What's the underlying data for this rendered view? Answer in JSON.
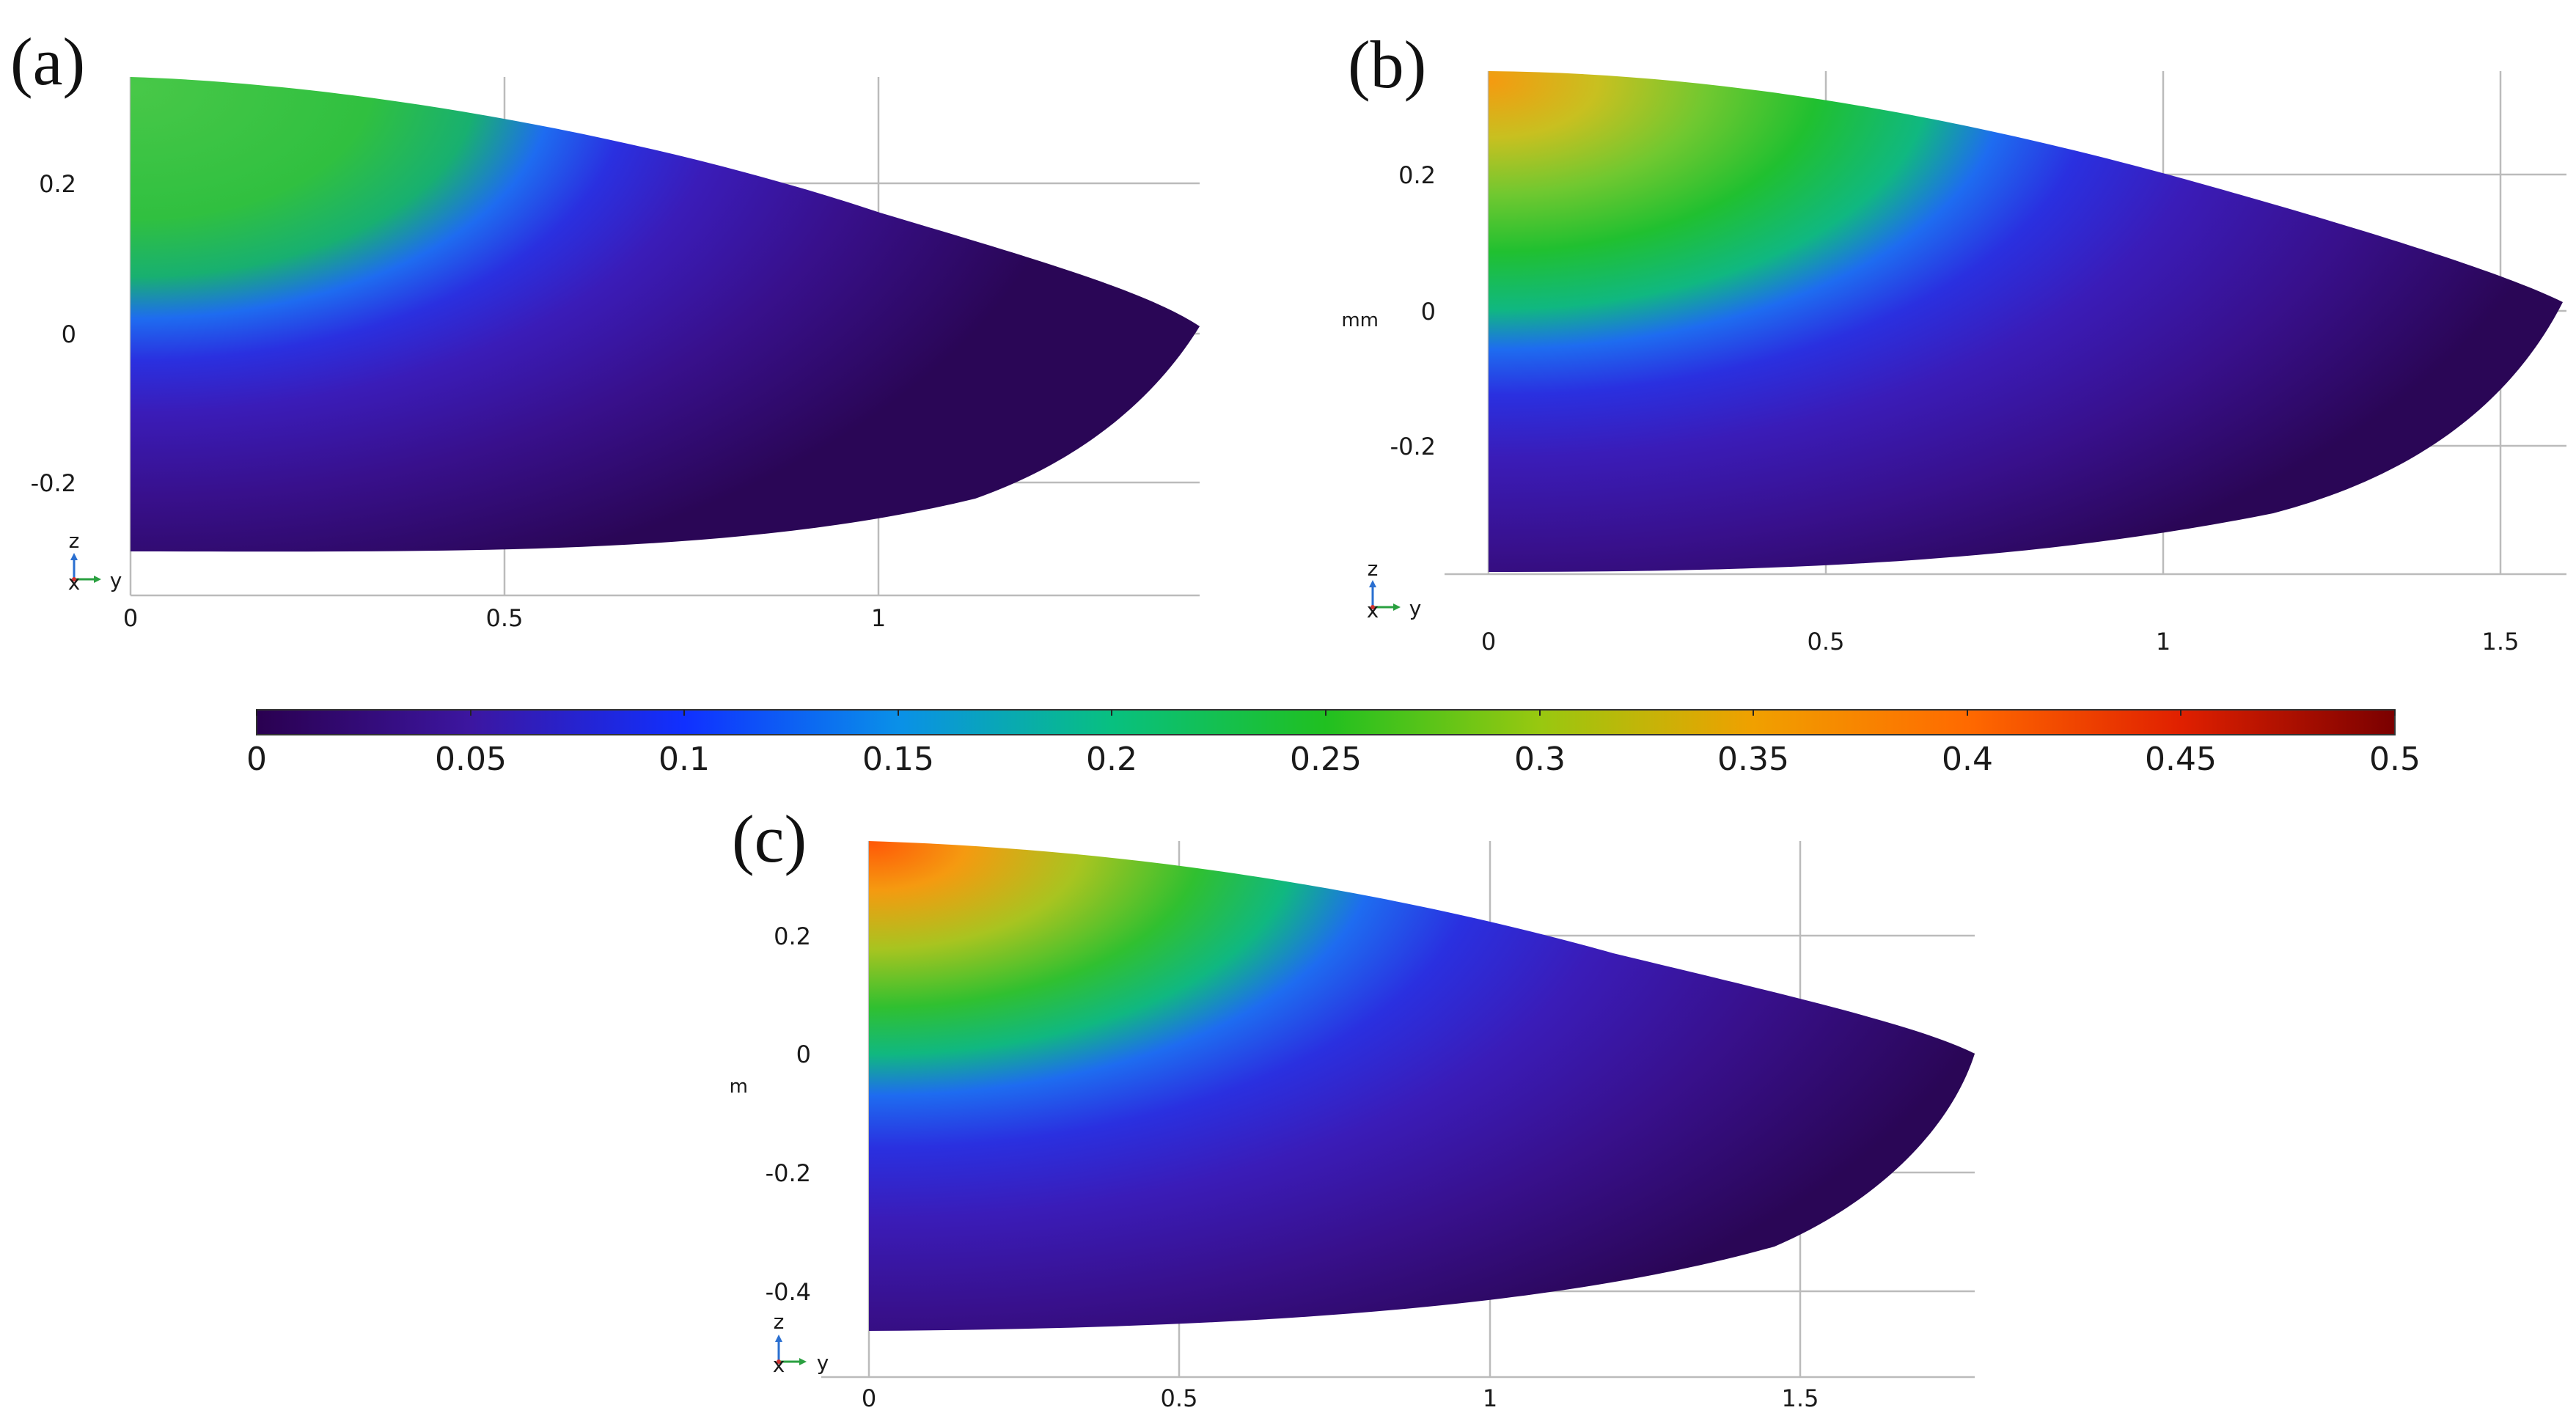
{
  "panels": [
    {
      "label": "(a)",
      "x_ticks": [
        "0",
        "0.5",
        "1"
      ],
      "y_ticks": [
        "0.2",
        "0",
        "-0.2"
      ],
      "unit": "",
      "triad": {
        "up": "z",
        "right": "y",
        "out": "x"
      }
    },
    {
      "label": "(b)",
      "x_ticks": [
        "0",
        "0.5",
        "1",
        "1.5"
      ],
      "y_ticks": [
        "0.2",
        "0",
        "-0.2"
      ],
      "unit": "mm",
      "triad": {
        "up": "z",
        "right": "y",
        "out": "x"
      }
    },
    {
      "label": "(c)",
      "x_ticks": [
        "0",
        "0.5",
        "1",
        "1.5"
      ],
      "y_ticks": [
        "0.2",
        "0",
        "-0.2",
        "-0.4"
      ],
      "unit": "m",
      "triad": {
        "up": "z",
        "right": "y",
        "out": "x"
      }
    }
  ],
  "colorbar": {
    "ticks": [
      "0",
      "0.05",
      "0.1",
      "0.15",
      "0.2",
      "0.25",
      "0.3",
      "0.35",
      "0.4",
      "0.45",
      "0.5"
    ],
    "range": [
      0,
      0.5
    ],
    "stops": [
      "#2a0050",
      "#3c16a0",
      "#1030ff",
      "#08b8a0",
      "#20c020",
      "#98c810",
      "#f09a00",
      "#ff4a00",
      "#7a0000"
    ]
  }
}
